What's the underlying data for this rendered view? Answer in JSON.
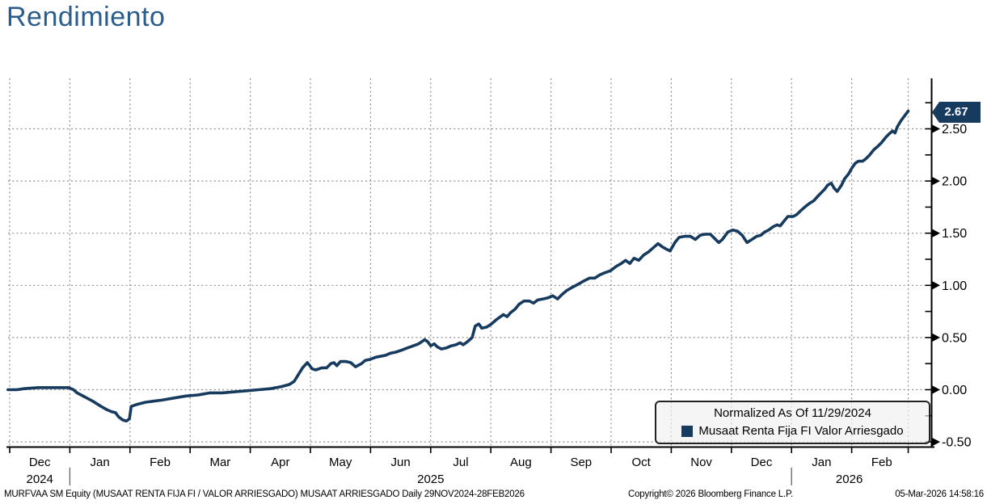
{
  "title": "Rendimiento",
  "colors": {
    "title_blue": "#2b5d8c",
    "series_navy": "#173a5f",
    "grid_gray": "#8f8f8f",
    "legend_bg": "#f0f0f0",
    "tag_bg": "#173a5f",
    "tag_text": "#ffffff"
  },
  "tag": {
    "value": "2.67"
  },
  "legend": {
    "line1": "Normalized As Of 11/29/2024",
    "line2": "Musaat Renta Fija FI Valor Arriesgado"
  },
  "footer": {
    "left": "MURFVAA SM Equity (MUSAAT RENTA FIJA FI / VALOR ARRIESGADO) MUSAAT ARRIESGADO Daily 29NOV2024-28FEB2026",
    "center": "Copyright© 2026 Bloomberg Finance L.P.",
    "right": "05-Mar-2026 14:58:16"
  },
  "chart_data": {
    "type": "line",
    "title": "Rendimiento",
    "normalized_as_of": "11/29/2024",
    "period": "Daily 29NOV2024-28FEB2026",
    "x_unit": "months since 01-Dec-2024 (plot left edge; data starts 29NOV2024)",
    "x_months": [
      "Dec",
      "Jan",
      "Feb",
      "Mar",
      "Apr",
      "May",
      "Jun",
      "Jul",
      "Aug",
      "Sep",
      "Oct",
      "Nov",
      "Dec",
      "Jan",
      "Feb"
    ],
    "x_years": [
      {
        "label": "2024",
        "at_month": 0.5
      },
      {
        "label": "2025",
        "at_month": 7.0
      },
      {
        "label": "2026",
        "at_month": 13.96
      }
    ],
    "year_separators_month": [
      1,
      13
    ],
    "x_end_month": 14.94,
    "ylim": [
      -0.55,
      2.98
    ],
    "grid": "dotted",
    "legend_position": "bottom-right",
    "y_ticks": [
      {
        "v": 2.5,
        "label": "2.50"
      },
      {
        "v": 2.0,
        "label": "2.00"
      },
      {
        "v": 1.5,
        "label": "1.50"
      },
      {
        "v": 1.0,
        "label": "1.00"
      },
      {
        "v": 0.5,
        "label": "0.50"
      },
      {
        "v": 0.0,
        "label": "0.00"
      },
      {
        "v": -0.5,
        "label": "-0.50"
      }
    ],
    "y_minor_step": 0.25,
    "last_value": 2.67,
    "series": [
      {
        "name": "Musaat Renta Fija FI Valor Arriesgado",
        "color": "#173a5f",
        "points": [
          [
            -0.03,
            0.0
          ],
          [
            0.12,
            0.0
          ],
          [
            0.24,
            0.01
          ],
          [
            0.47,
            0.02
          ],
          [
            0.75,
            0.02
          ],
          [
            0.98,
            0.02
          ],
          [
            1.06,
            0.0
          ],
          [
            1.12,
            -0.03
          ],
          [
            1.25,
            -0.07
          ],
          [
            1.38,
            -0.11
          ],
          [
            1.52,
            -0.16
          ],
          [
            1.61,
            -0.19
          ],
          [
            1.69,
            -0.21
          ],
          [
            1.76,
            -0.22
          ],
          [
            1.81,
            -0.26
          ],
          [
            1.88,
            -0.29
          ],
          [
            1.94,
            -0.3
          ],
          [
            1.99,
            -0.28
          ],
          [
            2.02,
            -0.16
          ],
          [
            2.12,
            -0.14
          ],
          [
            2.26,
            -0.12
          ],
          [
            2.39,
            -0.11
          ],
          [
            2.53,
            -0.1
          ],
          [
            2.73,
            -0.08
          ],
          [
            2.93,
            -0.06
          ],
          [
            3.13,
            -0.05
          ],
          [
            3.33,
            -0.03
          ],
          [
            3.53,
            -0.03
          ],
          [
            3.74,
            -0.02
          ],
          [
            3.94,
            -0.01
          ],
          [
            4.14,
            0.0
          ],
          [
            4.34,
            0.01
          ],
          [
            4.52,
            0.03
          ],
          [
            4.65,
            0.05
          ],
          [
            4.73,
            0.08
          ],
          [
            4.87,
            0.21
          ],
          [
            4.95,
            0.26
          ],
          [
            5.03,
            0.2
          ],
          [
            5.09,
            0.19
          ],
          [
            5.19,
            0.21
          ],
          [
            5.27,
            0.21
          ],
          [
            5.34,
            0.25
          ],
          [
            5.39,
            0.26
          ],
          [
            5.44,
            0.23
          ],
          [
            5.5,
            0.27
          ],
          [
            5.59,
            0.27
          ],
          [
            5.67,
            0.26
          ],
          [
            5.75,
            0.22
          ],
          [
            5.85,
            0.25
          ],
          [
            5.91,
            0.28
          ],
          [
            5.99,
            0.29
          ],
          [
            6.08,
            0.31
          ],
          [
            6.16,
            0.32
          ],
          [
            6.25,
            0.33
          ],
          [
            6.33,
            0.35
          ],
          [
            6.42,
            0.36
          ],
          [
            6.52,
            0.38
          ],
          [
            6.61,
            0.4
          ],
          [
            6.71,
            0.42
          ],
          [
            6.8,
            0.44
          ],
          [
            6.9,
            0.48
          ],
          [
            6.95,
            0.46
          ],
          [
            7.0,
            0.42
          ],
          [
            7.06,
            0.44
          ],
          [
            7.11,
            0.41
          ],
          [
            7.18,
            0.39
          ],
          [
            7.26,
            0.4
          ],
          [
            7.34,
            0.42
          ],
          [
            7.42,
            0.43
          ],
          [
            7.49,
            0.45
          ],
          [
            7.54,
            0.43
          ],
          [
            7.61,
            0.46
          ],
          [
            7.69,
            0.5
          ],
          [
            7.74,
            0.61
          ],
          [
            7.8,
            0.63
          ],
          [
            7.85,
            0.59
          ],
          [
            7.93,
            0.6
          ],
          [
            8.01,
            0.63
          ],
          [
            8.09,
            0.67
          ],
          [
            8.16,
            0.7
          ],
          [
            8.21,
            0.72
          ],
          [
            8.27,
            0.7
          ],
          [
            8.33,
            0.74
          ],
          [
            8.4,
            0.77
          ],
          [
            8.47,
            0.82
          ],
          [
            8.55,
            0.85
          ],
          [
            8.64,
            0.85
          ],
          [
            8.71,
            0.83
          ],
          [
            8.78,
            0.86
          ],
          [
            8.87,
            0.87
          ],
          [
            8.95,
            0.88
          ],
          [
            9.03,
            0.9
          ],
          [
            9.11,
            0.87
          ],
          [
            9.18,
            0.91
          ],
          [
            9.26,
            0.95
          ],
          [
            9.35,
            0.98
          ],
          [
            9.45,
            1.01
          ],
          [
            9.54,
            1.04
          ],
          [
            9.64,
            1.07
          ],
          [
            9.73,
            1.07
          ],
          [
            9.81,
            1.1
          ],
          [
            9.89,
            1.12
          ],
          [
            9.99,
            1.14
          ],
          [
            10.08,
            1.18
          ],
          [
            10.17,
            1.21
          ],
          [
            10.24,
            1.24
          ],
          [
            10.31,
            1.21
          ],
          [
            10.38,
            1.26
          ],
          [
            10.46,
            1.24
          ],
          [
            10.54,
            1.29
          ],
          [
            10.62,
            1.32
          ],
          [
            10.7,
            1.36
          ],
          [
            10.78,
            1.4
          ],
          [
            10.85,
            1.37
          ],
          [
            10.91,
            1.35
          ],
          [
            10.98,
            1.33
          ],
          [
            11.06,
            1.41
          ],
          [
            11.13,
            1.46
          ],
          [
            11.22,
            1.47
          ],
          [
            11.32,
            1.47
          ],
          [
            11.4,
            1.44
          ],
          [
            11.48,
            1.48
          ],
          [
            11.56,
            1.49
          ],
          [
            11.65,
            1.49
          ],
          [
            11.72,
            1.45
          ],
          [
            11.79,
            1.41
          ],
          [
            11.85,
            1.44
          ],
          [
            11.94,
            1.51
          ],
          [
            12.02,
            1.53
          ],
          [
            12.1,
            1.52
          ],
          [
            12.18,
            1.48
          ],
          [
            12.26,
            1.41
          ],
          [
            12.34,
            1.44
          ],
          [
            12.42,
            1.47
          ],
          [
            12.49,
            1.48
          ],
          [
            12.55,
            1.51
          ],
          [
            12.62,
            1.53
          ],
          [
            12.69,
            1.56
          ],
          [
            12.76,
            1.58
          ],
          [
            12.81,
            1.57
          ],
          [
            12.88,
            1.62
          ],
          [
            12.94,
            1.66
          ],
          [
            13.03,
            1.66
          ],
          [
            13.09,
            1.68
          ],
          [
            13.16,
            1.72
          ],
          [
            13.24,
            1.76
          ],
          [
            13.31,
            1.79
          ],
          [
            13.37,
            1.81
          ],
          [
            13.43,
            1.85
          ],
          [
            13.48,
            1.88
          ],
          [
            13.55,
            1.92
          ],
          [
            13.6,
            1.96
          ],
          [
            13.66,
            1.98
          ],
          [
            13.71,
            1.93
          ],
          [
            13.76,
            1.9
          ],
          [
            13.83,
            1.96
          ],
          [
            13.88,
            2.02
          ],
          [
            13.95,
            2.07
          ],
          [
            14.01,
            2.13
          ],
          [
            14.06,
            2.17
          ],
          [
            14.11,
            2.19
          ],
          [
            14.18,
            2.19
          ],
          [
            14.23,
            2.21
          ],
          [
            14.3,
            2.25
          ],
          [
            14.37,
            2.3
          ],
          [
            14.43,
            2.33
          ],
          [
            14.5,
            2.37
          ],
          [
            14.57,
            2.42
          ],
          [
            14.62,
            2.45
          ],
          [
            14.68,
            2.48
          ],
          [
            14.72,
            2.46
          ],
          [
            14.76,
            2.52
          ],
          [
            14.81,
            2.57
          ],
          [
            14.86,
            2.61
          ],
          [
            14.9,
            2.64
          ],
          [
            14.94,
            2.67
          ]
        ]
      }
    ]
  }
}
